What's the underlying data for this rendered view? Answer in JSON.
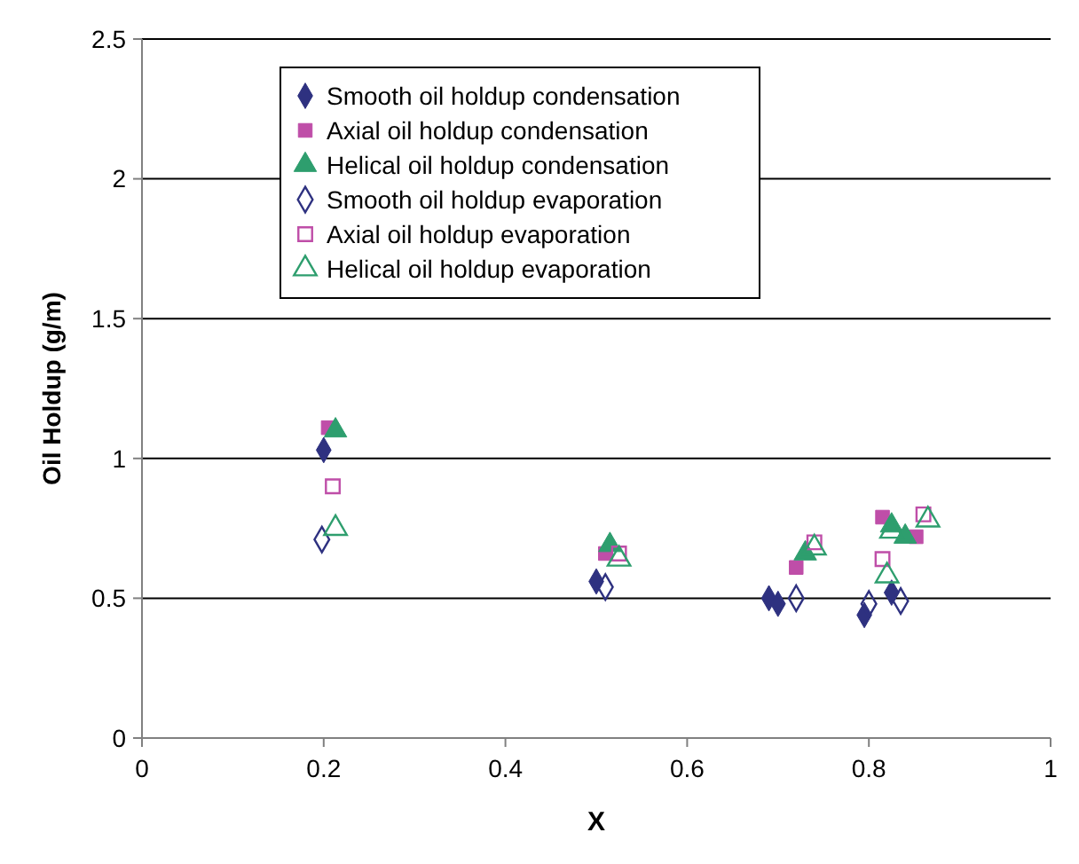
{
  "chart_data": {
    "type": "scatter",
    "xlabel": "X",
    "ylabel": "Oil Holdup (g/m)",
    "xlim": [
      0,
      1
    ],
    "xticks": [
      0,
      0.2,
      0.4,
      0.6,
      0.8,
      1
    ],
    "ylim": [
      0,
      2.5
    ],
    "yticks": [
      0,
      0.5,
      1,
      1.5,
      2,
      2.5
    ],
    "grid": "y",
    "legend": "top left",
    "series": [
      {
        "name": "Smooth oil holdup condensation",
        "color": "#2e3180",
        "marker": "diamond",
        "x": [
          0.2,
          0.5,
          0.69,
          0.7,
          0.795,
          0.825
        ],
        "values": [
          1.03,
          0.56,
          0.5,
          0.48,
          0.44,
          0.52
        ]
      },
      {
        "name": "Axial oil holdup condensation",
        "color": "#bf4ea8",
        "marker": "square",
        "x": [
          0.205,
          0.51,
          0.72,
          0.815,
          0.852
        ],
        "values": [
          1.11,
          0.66,
          0.61,
          0.79,
          0.72
        ]
      },
      {
        "name": "Helical oil holdup condensation",
        "color": "#2e9e6e",
        "marker": "triangle",
        "x": [
          0.213,
          0.515,
          0.73,
          0.825,
          0.84
        ],
        "values": [
          1.1,
          0.69,
          0.66,
          0.76,
          0.72
        ]
      },
      {
        "name": "Smooth oil holdup evaporation",
        "color": "#2e3180",
        "marker": "diamond",
        "x": [
          0.198,
          0.51,
          0.72,
          0.8,
          0.835
        ],
        "values": [
          0.71,
          0.54,
          0.5,
          0.48,
          0.49
        ]
      },
      {
        "name": "Axial oil holdup evaporation",
        "color": "#bf4ea8",
        "marker": "square",
        "x": [
          0.21,
          0.525,
          0.74,
          0.815,
          0.86
        ],
        "values": [
          0.9,
          0.66,
          0.7,
          0.64,
          0.8
        ]
      },
      {
        "name": "Helical oil holdup evaporation",
        "color": "#2e9e6e",
        "marker": "triangle",
        "x": [
          0.213,
          0.525,
          0.74,
          0.82,
          0.825,
          0.865
        ],
        "values": [
          0.75,
          0.64,
          0.68,
          0.58,
          0.74,
          0.78
        ]
      }
    ]
  }
}
